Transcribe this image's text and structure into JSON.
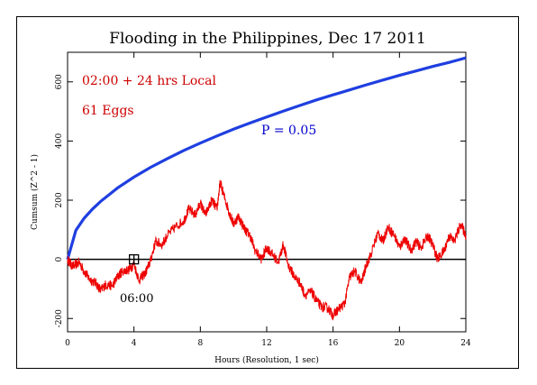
{
  "chart_data": {
    "type": "line",
    "title": "Flooding in the Philippines, Dec 17 2011",
    "xlabel": "Hours (Resolution, 1 sec)",
    "ylabel": "Cumsum (Z^2 - 1)",
    "xlim": [
      0,
      24
    ],
    "ylim": [
      -245,
      700
    ],
    "x_ticks": [
      0,
      4,
      8,
      12,
      16,
      20,
      24
    ],
    "y_ticks": [
      -200,
      0,
      200,
      400,
      600
    ],
    "annotations": [
      {
        "text": "02:00 + 24 hrs Local",
        "color": "#cc0000"
      },
      {
        "text": "61 Eggs",
        "color": "#cc0000"
      },
      {
        "text": "P = 0.05",
        "color": "#0000cc"
      },
      {
        "text": "06:00",
        "color": "#000000"
      }
    ],
    "marker_x": 4,
    "marker_y": 0,
    "series": [
      {
        "role": "probability-envelope",
        "color": "#1f3fe0",
        "x": [
          0,
          0.5,
          1,
          1.5,
          2,
          3,
          4,
          5,
          6,
          7,
          8,
          9,
          10,
          11,
          12,
          13,
          14,
          15,
          16,
          17,
          18,
          19,
          20,
          21,
          22,
          23,
          24
        ],
        "y": [
          0,
          98,
          139,
          170,
          196,
          241,
          278,
          311,
          340,
          368,
          393,
          417,
          440,
          461,
          481,
          501,
          520,
          539,
          556,
          573,
          590,
          606,
          622,
          637,
          652,
          666,
          681
        ]
      },
      {
        "role": "cumulative-deviation",
        "color": "#ee0000",
        "x": [
          0,
          0.3,
          0.7,
          1,
          1.3,
          1.7,
          2,
          2.3,
          2.7,
          3,
          3.3,
          3.7,
          4,
          4.3,
          4.7,
          5,
          5.3,
          5.7,
          6,
          6.5,
          7,
          7.3,
          7.7,
          8,
          8.3,
          8.7,
          9,
          9.2,
          9.5,
          9.8,
          10,
          10.3,
          10.7,
          11,
          11.3,
          11.7,
          12,
          12.3,
          12.7,
          13,
          13.3,
          13.7,
          14,
          14.3,
          14.7,
          15,
          15.3,
          15.7,
          16,
          16.3,
          16.7,
          17,
          17.3,
          17.7,
          18,
          18.3,
          18.7,
          19,
          19.3,
          19.7,
          20,
          20.3,
          20.7,
          21,
          21.3,
          21.7,
          22,
          22.3,
          22.7,
          23,
          23.3,
          23.7,
          24
        ],
        "y": [
          0,
          -25,
          -10,
          -40,
          -65,
          -80,
          -105,
          -85,
          -90,
          -60,
          -40,
          -35,
          -15,
          -70,
          -45,
          -5,
          60,
          50,
          80,
          110,
          130,
          170,
          150,
          190,
          150,
          200,
          170,
          260,
          200,
          150,
          120,
          145,
          100,
          80,
          30,
          0,
          40,
          20,
          -10,
          50,
          -20,
          -60,
          -80,
          -120,
          -110,
          -140,
          -160,
          -165,
          -190,
          -170,
          -150,
          -60,
          -40,
          -80,
          -20,
          20,
          90,
          60,
          110,
          80,
          40,
          70,
          30,
          60,
          40,
          80,
          50,
          0,
          30,
          80,
          60,
          120,
          80
        ]
      }
    ]
  }
}
